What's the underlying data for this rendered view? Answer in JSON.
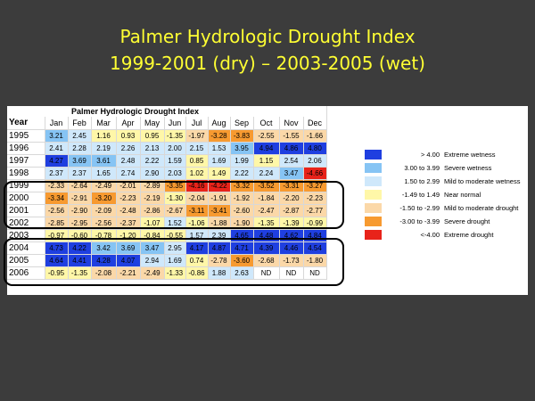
{
  "slide_title": {
    "line1": "Palmer Hydrologic Drought Index",
    "line2": "1999-2001 (dry) – 2003-2005 (wet)"
  },
  "table": {
    "super_title": "Palmer Hydrologic Drought Index",
    "columns": [
      "Year",
      "Jan",
      "Feb",
      "Mar",
      "Apr",
      "May",
      "Jun",
      "Jul",
      "Aug",
      "Sep",
      "Oct",
      "Nov",
      "Dec"
    ],
    "rows": [
      {
        "year": "1995",
        "values": [
          "3.21",
          "2.45",
          "1.16",
          "0.93",
          "0.95",
          "-1.35",
          "-1.97",
          "-3.28",
          "-3.83",
          "-2.55",
          "-1.55",
          "-1.66"
        ]
      },
      {
        "year": "1996",
        "values": [
          "2.41",
          "2.28",
          "2.19",
          "2.26",
          "2.13",
          "2.00",
          "2.15",
          "1.53",
          "3.95",
          "4.94",
          "4.86",
          "4.80"
        ]
      },
      {
        "year": "1997",
        "values": [
          "4.27",
          "3.69",
          "3.61",
          "2.48",
          "2.22",
          "1.59",
          "0.85",
          "1.69",
          "1.99",
          "1.15",
          "2.54",
          "2.06"
        ]
      },
      {
        "year": "1998",
        "values": [
          "2.37",
          "2.37",
          "1.65",
          "2.74",
          "2.90",
          "2.03",
          "1.02",
          "1.49",
          "2.22",
          "2.24",
          "3.47",
          "-4.66"
        ]
      },
      {
        "year": "1999",
        "values": [
          "-2.33",
          "-2.64",
          "-2.49",
          "-2.01",
          "-2.89",
          "-3.35",
          "-4.16",
          "-4.22",
          "-3.32",
          "-3.52",
          "-3.31",
          "-3.27"
        ]
      },
      {
        "year": "2000",
        "values": [
          "-3.34",
          "-2.91",
          "-3.20",
          "-2.23",
          "-2.19",
          "-1.30",
          "-2.04",
          "-1.91",
          "-1.92",
          "-1.84",
          "-2.20",
          "-2.23"
        ]
      },
      {
        "year": "2001",
        "values": [
          "-2.56",
          "-2.90",
          "-2.09",
          "-2.48",
          "-2.86",
          "-2.67",
          "-3.11",
          "-3.41",
          "-2.60",
          "-2.47",
          "-2.87",
          "-2.77"
        ]
      },
      {
        "year": "2002",
        "values": [
          "-2.85",
          "-2.95",
          "-2.56",
          "-2.37",
          "-1.07",
          "1.52",
          "-1.06",
          "-1.88",
          "-1.90",
          "-1.35",
          "-1.39",
          "-0.99"
        ]
      },
      {
        "year": "2003",
        "values": [
          "-0.97",
          "-0.60",
          "-0.78",
          "-1.20",
          "-0.84",
          "-0.55",
          "1.57",
          "2.39",
          "4.65",
          "4.48",
          "4.62",
          "4.84"
        ]
      },
      {
        "year": "2004",
        "values": [
          "4.73",
          "4.22",
          "3.42",
          "3.69",
          "3.47",
          "2.95",
          "4.17",
          "4.87",
          "4.71",
          "4.39",
          "4.46",
          "4.54"
        ]
      },
      {
        "year": "2005",
        "values": [
          "4.64",
          "4.41",
          "4.28",
          "4.07",
          "2.94",
          "1.69",
          "0.74",
          "-2.78",
          "-3.60",
          "-2.68",
          "-1.73",
          "-1.80"
        ]
      },
      {
        "year": "2006",
        "values": [
          "-0.95",
          "-1.35",
          "-2.08",
          "-2.21",
          "-2.49",
          "-1.33",
          "-0.86",
          "1.88",
          "2.63",
          "ND",
          "ND",
          "ND"
        ]
      }
    ]
  },
  "legend": [
    {
      "range": "> 4.00",
      "label": "Extreme wetness",
      "color": "#1f3fe0"
    },
    {
      "range": "3.00 to 3.99",
      "label": "Severe wetness",
      "color": "#86c4f4"
    },
    {
      "range": "1.50 to 2.99",
      "label": "Mild to moderate wetness",
      "color": "#cfe8fb"
    },
    {
      "range": "-1.49 to 1.49",
      "label": "Near normal",
      "color": "#fff7a8"
    },
    {
      "range": "-1.50 to -2.99",
      "label": "Mild to moderate drought",
      "color": "#fbd8a8"
    },
    {
      "range": "-3.00 to -3.99",
      "label": "Severe drought",
      "color": "#f79a30"
    },
    {
      "range": "<-4.00",
      "label": "Extreme drought",
      "color": "#e8231a"
    }
  ]
}
